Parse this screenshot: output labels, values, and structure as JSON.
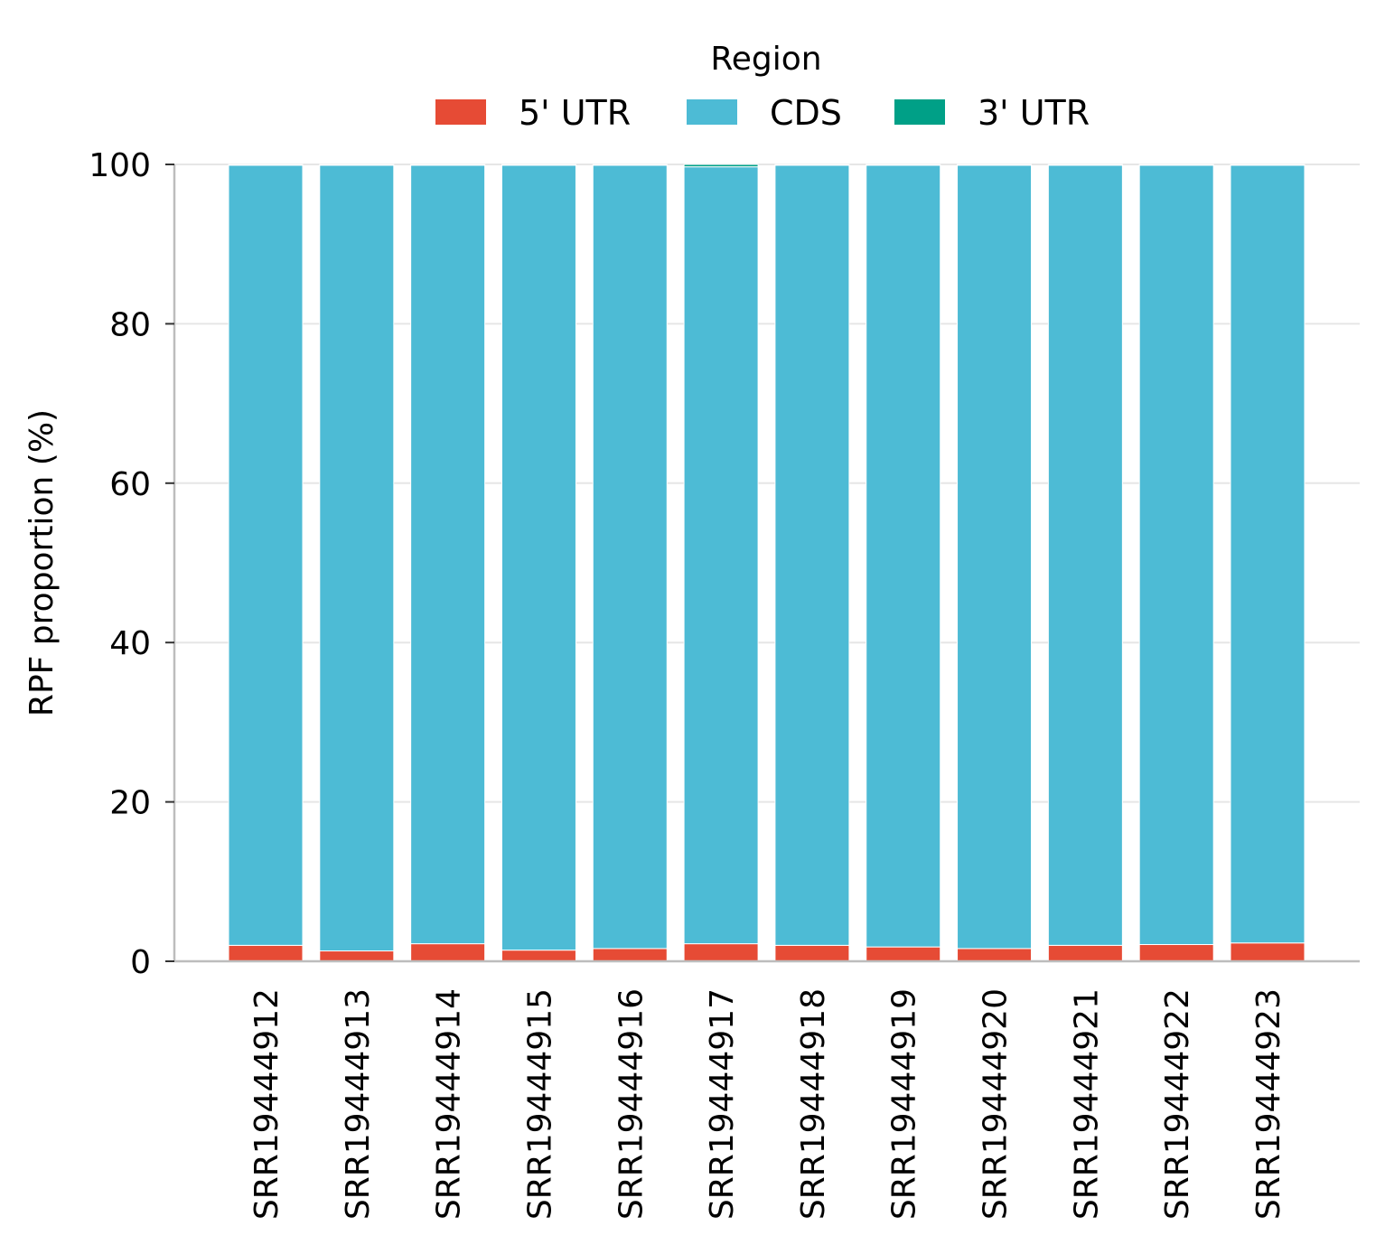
{
  "chart_data": {
    "type": "bar",
    "stacked": true,
    "categories": [
      "SRR19444912",
      "SRR19444913",
      "SRR19444914",
      "SRR19444915",
      "SRR19444916",
      "SRR19444917",
      "SRR19444918",
      "SRR19444919",
      "SRR19444920",
      "SRR19444921",
      "SRR19444922",
      "SRR19444923"
    ],
    "series": [
      {
        "name": "5' UTR",
        "color": "#E64B35",
        "values": [
          2.0,
          1.3,
          2.2,
          1.4,
          1.6,
          2.2,
          2.0,
          1.8,
          1.6,
          2.0,
          2.1,
          2.3
        ]
      },
      {
        "name": "CDS",
        "color": "#4DBBD5",
        "values": [
          97.9,
          98.6,
          97.7,
          98.5,
          98.3,
          97.5,
          97.9,
          98.1,
          98.3,
          97.9,
          97.8,
          97.6
        ]
      },
      {
        "name": "3' UTR",
        "color": "#00A087",
        "values": [
          0.1,
          0.1,
          0.1,
          0.1,
          0.1,
          0.3,
          0.1,
          0.1,
          0.1,
          0.1,
          0.1,
          0.1
        ]
      }
    ],
    "legend_title": "Region",
    "legend_position": "top-center",
    "xlabel": "",
    "ylabel": "RPF proportion (%)",
    "ylim": [
      0,
      100
    ],
    "yticks": [
      "0",
      "20",
      "40",
      "60",
      "80",
      "100"
    ],
    "grid": "y-only"
  }
}
